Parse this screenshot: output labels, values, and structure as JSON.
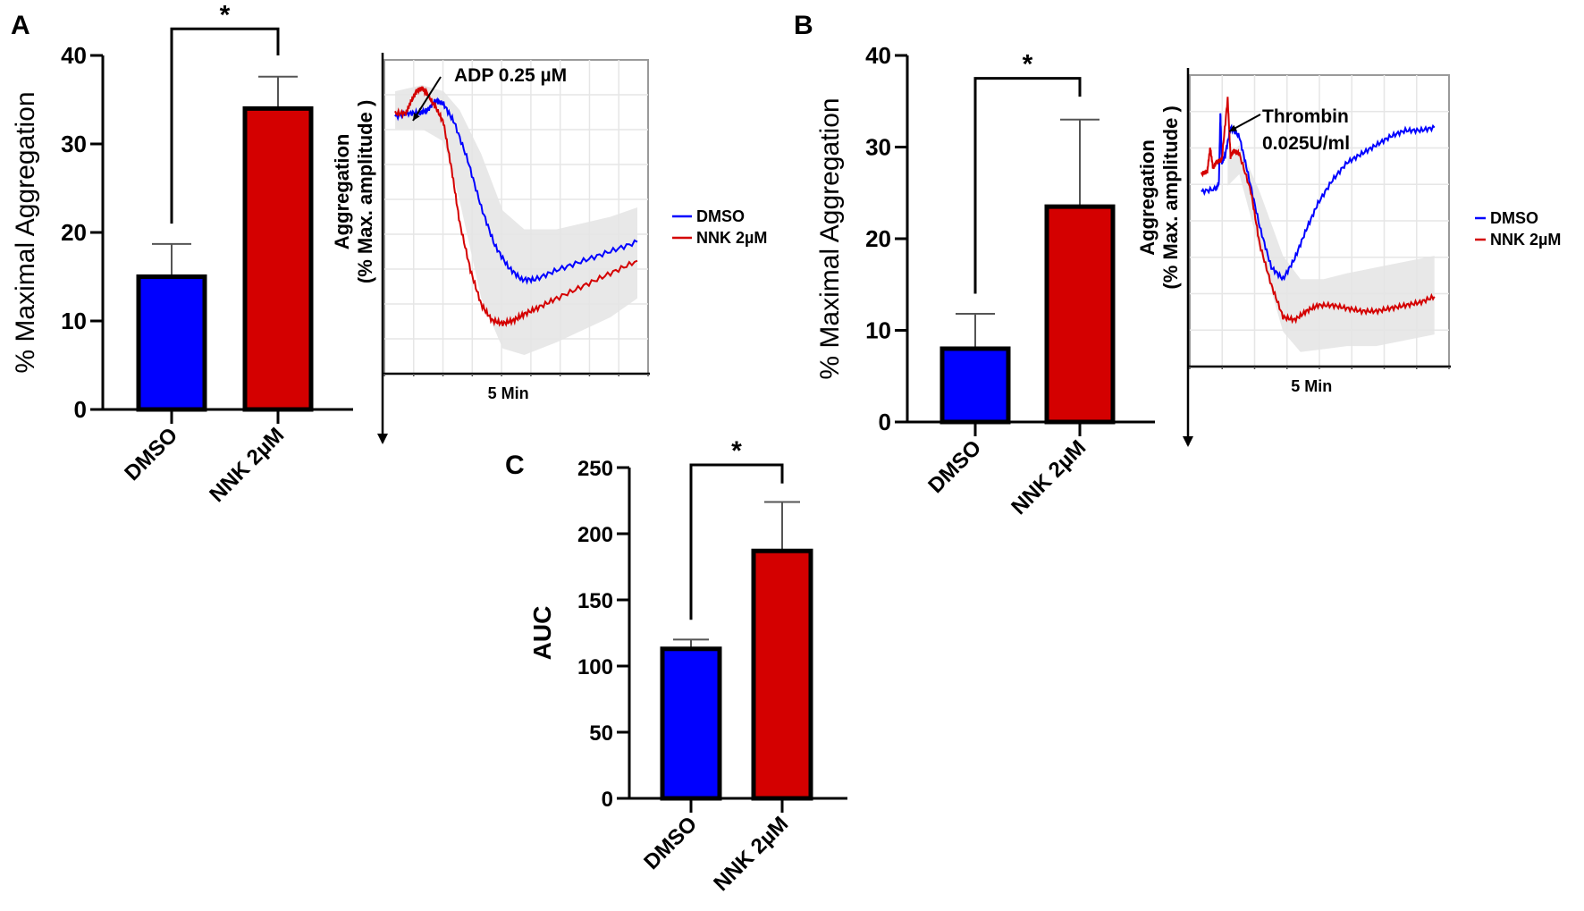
{
  "figure": {
    "panel_labels": [
      "A",
      "B",
      "C"
    ],
    "colors": {
      "dmso": "#0000ff",
      "nnk": "#d40000",
      "axis": "#000000",
      "band": "#e4e4e4",
      "grid": "#e6e6e6"
    }
  },
  "chart_data": [
    {
      "id": "A-bar",
      "panel": "A",
      "type": "bar",
      "title": "",
      "categories": [
        "DMSO",
        "NNK 2µM"
      ],
      "values": [
        15,
        34
      ],
      "errors": [
        3.7,
        3.6
      ],
      "ylabel": "% Maximal Aggregation",
      "xlabel": "",
      "ylim": [
        0,
        40
      ],
      "yticks": [
        0,
        10,
        20,
        30,
        40
      ],
      "significance": {
        "between": [
          0,
          1
        ],
        "label": "*",
        "left_y": 21,
        "right_y": 40,
        "top_y": 43
      },
      "grid": false
    },
    {
      "id": "A-trace",
      "panel": "A",
      "type": "line",
      "annotation": "ADP 0.25 µM",
      "ylabel_line1": "Aggregation",
      "ylabel_line2": "(% Max. amplitude )",
      "xlabel": "5 Min",
      "grid": true,
      "legend": [
        "DMSO",
        "NNK 2µM"
      ],
      "legend_position": "right",
      "series": [
        {
          "name": "DMSO",
          "x": [
            0,
            0.5,
            0.9,
            1.2,
            1.5,
            1.8,
            2.2,
            2.7,
            3.2,
            3.7,
            4.2,
            4.7,
            5.2,
            6,
            7,
            8,
            9
          ],
          "y": [
            0.82,
            0.83,
            0.83,
            0.84,
            0.87,
            0.86,
            0.8,
            0.68,
            0.53,
            0.41,
            0.34,
            0.3,
            0.3,
            0.33,
            0.36,
            0.39,
            0.42
          ]
        },
        {
          "name": "NNK 2µM",
          "x": [
            0,
            0.4,
            0.6,
            0.8,
            1.0,
            1.2,
            1.5,
            1.8,
            2.1,
            2.4,
            2.8,
            3.2,
            3.6,
            4.0,
            4.4,
            4.8,
            5.3,
            6,
            7,
            8,
            9
          ],
          "y": [
            0.83,
            0.83,
            0.87,
            0.9,
            0.91,
            0.89,
            0.85,
            0.8,
            0.65,
            0.48,
            0.33,
            0.22,
            0.17,
            0.16,
            0.17,
            0.19,
            0.21,
            0.24,
            0.28,
            0.32,
            0.36
          ]
        }
      ],
      "band_upper": [
        0.9,
        0.92,
        0.9,
        0.84,
        0.7,
        0.52,
        0.46,
        0.46,
        0.48,
        0.5,
        0.53
      ],
      "band_lower": [
        0.78,
        0.78,
        0.74,
        0.55,
        0.24,
        0.08,
        0.06,
        0.1,
        0.14,
        0.18,
        0.24
      ],
      "band_x": [
        0,
        1,
        1.8,
        2.4,
        3.2,
        4.0,
        4.8,
        6,
        7,
        8,
        9
      ],
      "xlim": [
        -0.4,
        9.4
      ],
      "ylim": [
        0,
        1
      ]
    },
    {
      "id": "B-bar",
      "panel": "B",
      "type": "bar",
      "title": "",
      "categories": [
        "DMSO",
        "NNK 2µM"
      ],
      "values": [
        8,
        23.5
      ],
      "errors": [
        3.8,
        9.5
      ],
      "ylabel": "% Maximal Aggregation",
      "xlabel": "",
      "ylim": [
        0,
        40
      ],
      "yticks": [
        0,
        10,
        20,
        30,
        40
      ],
      "significance": {
        "between": [
          0,
          1
        ],
        "label": "*",
        "left_y": 14,
        "right_y": 35.5,
        "top_y": 37.5
      },
      "grid": false
    },
    {
      "id": "B-trace",
      "panel": "B",
      "type": "line",
      "annotation_line1": "Thrombin",
      "annotation_line2": "0.025U/ml",
      "ylabel_line1": "Aggregation",
      "ylabel_line2": "(% Max. amplitude )",
      "xlabel": "5 Min",
      "grid": true,
      "legend": [
        "DMSO",
        "NNK 2µM"
      ],
      "legend_position": "right",
      "series": [
        {
          "name": "DMSO",
          "x": [
            0,
            0.5,
            0.6,
            0.65,
            0.7,
            0.8,
            1.0,
            1.3,
            1.6,
            2.0,
            2.4,
            2.8,
            3.2,
            3.6,
            4.0,
            4.5,
            5.0,
            5.5,
            6.0,
            6.5,
            7.0,
            7.5,
            8.0
          ],
          "y": [
            0.6,
            0.61,
            0.63,
            0.87,
            0.7,
            0.72,
            0.82,
            0.79,
            0.66,
            0.48,
            0.34,
            0.3,
            0.37,
            0.47,
            0.56,
            0.64,
            0.7,
            0.73,
            0.76,
            0.79,
            0.81,
            0.81,
            0.82
          ]
        },
        {
          "name": "NNK 2µM",
          "x": [
            0,
            0.2,
            0.3,
            0.4,
            0.5,
            0.7,
            0.9,
            1.0,
            1.1,
            1.3,
            1.7,
            2.0,
            2.4,
            2.8,
            3.2,
            3.6,
            4.0,
            4.5,
            5.0,
            5.5,
            6.0,
            6.5,
            7.0,
            7.5,
            8.0
          ],
          "y": [
            0.66,
            0.67,
            0.75,
            0.68,
            0.7,
            0.71,
            0.92,
            0.72,
            0.74,
            0.73,
            0.6,
            0.42,
            0.28,
            0.17,
            0.16,
            0.19,
            0.21,
            0.21,
            0.2,
            0.19,
            0.19,
            0.2,
            0.21,
            0.22,
            0.24
          ]
        }
      ],
      "band_upper": [
        0.72,
        0.76,
        0.6,
        0.38,
        0.3,
        0.3,
        0.32,
        0.34,
        0.36,
        0.38
      ],
      "band_lower": [
        0.62,
        0.66,
        0.4,
        0.12,
        0.05,
        0.06,
        0.07,
        0.07,
        0.09,
        0.11
      ],
      "band_x": [
        0.9,
        1.3,
        2.0,
        2.8,
        3.4,
        4.2,
        5.0,
        6.0,
        7.0,
        8.0
      ],
      "xlim": [
        -0.4,
        8.5
      ],
      "ylim": [
        0,
        1
      ]
    },
    {
      "id": "C-bar",
      "panel": "C",
      "type": "bar",
      "title": "",
      "categories": [
        "DMSO",
        "NNK 2µM"
      ],
      "values": [
        113,
        187
      ],
      "errors": [
        7,
        37
      ],
      "ylabel": "AUC",
      "xlabel": "",
      "ylim": [
        0,
        250
      ],
      "yticks": [
        0,
        50,
        100,
        150,
        200,
        250
      ],
      "significance": {
        "between": [
          0,
          1
        ],
        "label": "*",
        "left_y": 135,
        "right_y": 238,
        "top_y": 252
      },
      "grid": false
    }
  ]
}
